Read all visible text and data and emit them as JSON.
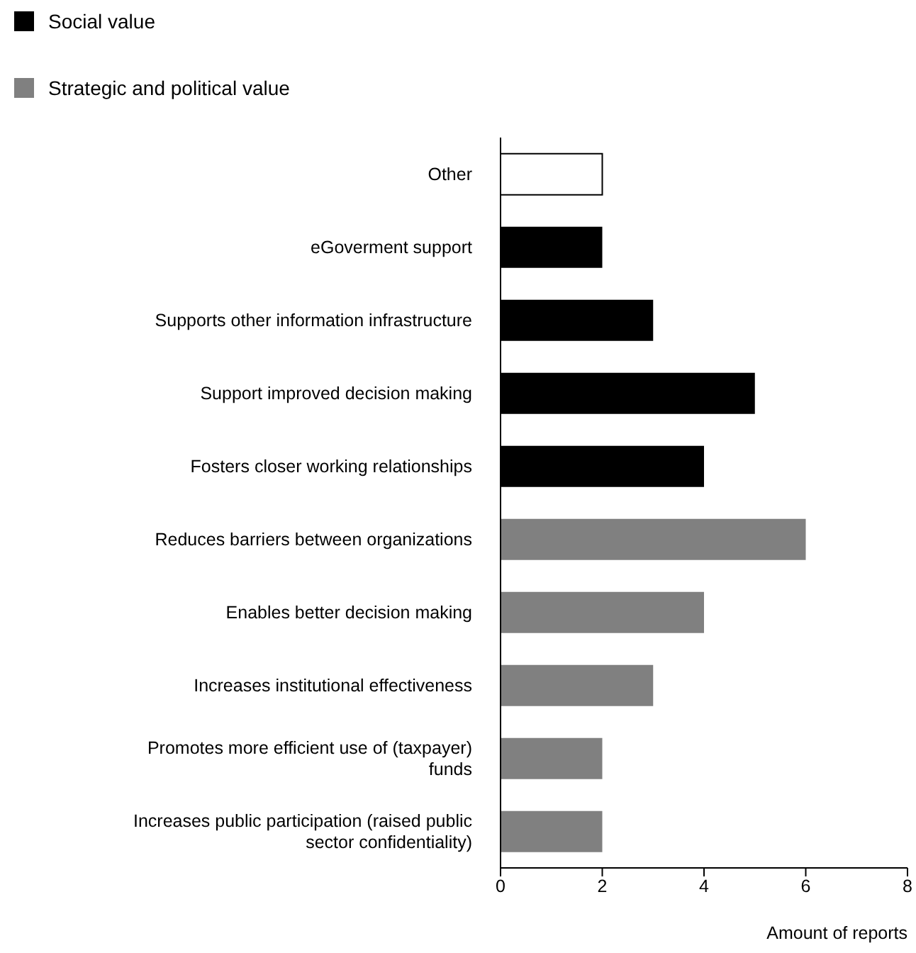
{
  "chart_data": {
    "type": "bar",
    "orientation": "horizontal",
    "stacked": true,
    "xlabel": "Amount of reports",
    "categories": [
      "Other",
      "eGoverment support",
      "Supports other information infrastructure",
      "Support improved decision making",
      "Fosters closer working relationships",
      "Reduces barriers between organizations",
      "Enables better decision making",
      "Increases institutional effectiveness",
      "Promotes more efficient use of (taxpayer) funds",
      "Increases public participation (raised public sector confidentiality)"
    ],
    "series": [
      {
        "name": "Social value",
        "color": "#000000",
        "values": [
          null,
          2,
          3,
          5,
          4,
          null,
          null,
          null,
          null,
          null
        ]
      },
      {
        "name": "Strategic and political value",
        "color": "#808080",
        "values": [
          null,
          null,
          null,
          null,
          null,
          6,
          4,
          3,
          2,
          2
        ]
      },
      {
        "color": "#ffffff",
        "values": [
          2,
          null,
          null,
          null,
          null,
          null,
          null,
          null,
          null,
          null
        ]
      }
    ],
    "xlim": [
      0,
      8
    ],
    "xticks": [
      0,
      2,
      4,
      6,
      8
    ],
    "grid": false,
    "legend": "top left"
  }
}
